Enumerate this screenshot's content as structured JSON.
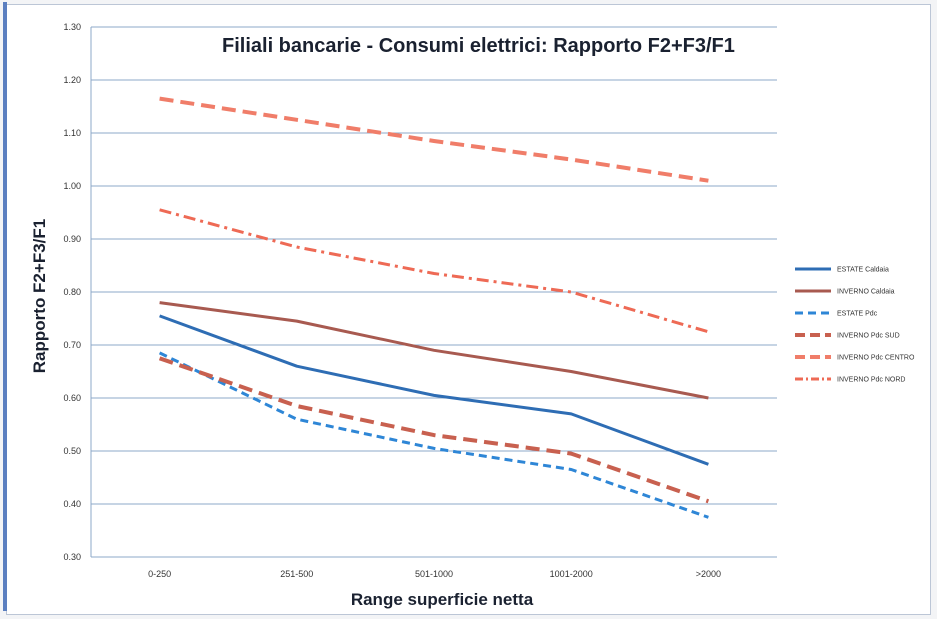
{
  "chart_data": {
    "type": "line",
    "title": "Filiali bancarie - Consumi elettrici: Rapporto F2+F3/F1",
    "xlabel": "Range superficie netta",
    "ylabel": "Rapporto F2+F3/F1",
    "categories": [
      "0-250",
      "251-500",
      "501-1000",
      "1001-2000",
      ">2000"
    ],
    "ylim": [
      0.3,
      1.3
    ],
    "yticks": [
      "0.30",
      "0.40",
      "0.50",
      "0.60",
      "0.70",
      "0.80",
      "0.90",
      "1.00",
      "1.10",
      "1.20",
      "1.30"
    ],
    "grid": true,
    "legend_position": "right",
    "series": [
      {
        "name": "ESTATE Caldaia",
        "values": [
          0.755,
          0.66,
          0.605,
          0.57,
          0.475
        ],
        "color": "#2e6db4",
        "dash": "solid",
        "width": 3
      },
      {
        "name": "INVERNO Caldaia",
        "values": [
          0.78,
          0.745,
          0.69,
          0.65,
          0.6
        ],
        "color": "#a85a50",
        "dash": "solid",
        "width": 3
      },
      {
        "name": "ESTATE Pdc",
        "values": [
          0.685,
          0.56,
          0.505,
          0.465,
          0.375
        ],
        "color": "#2e86d6",
        "dash": "dash",
        "width": 3
      },
      {
        "name": "INVERNO Pdc SUD",
        "values": [
          0.675,
          0.585,
          0.53,
          0.495,
          0.405
        ],
        "color": "#c8604f",
        "dash": "longdash",
        "width": 4
      },
      {
        "name": "INVERNO Pdc CENTRO",
        "values": [
          1.165,
          1.125,
          1.085,
          1.05,
          1.01
        ],
        "color": "#f07d69",
        "dash": "longdash",
        "width": 4
      },
      {
        "name": "INVERNO Pdc NORD",
        "values": [
          0.955,
          0.885,
          0.835,
          0.8,
          0.725
        ],
        "color": "#ee6a55",
        "dash": "dashdot",
        "width": 3
      }
    ]
  }
}
